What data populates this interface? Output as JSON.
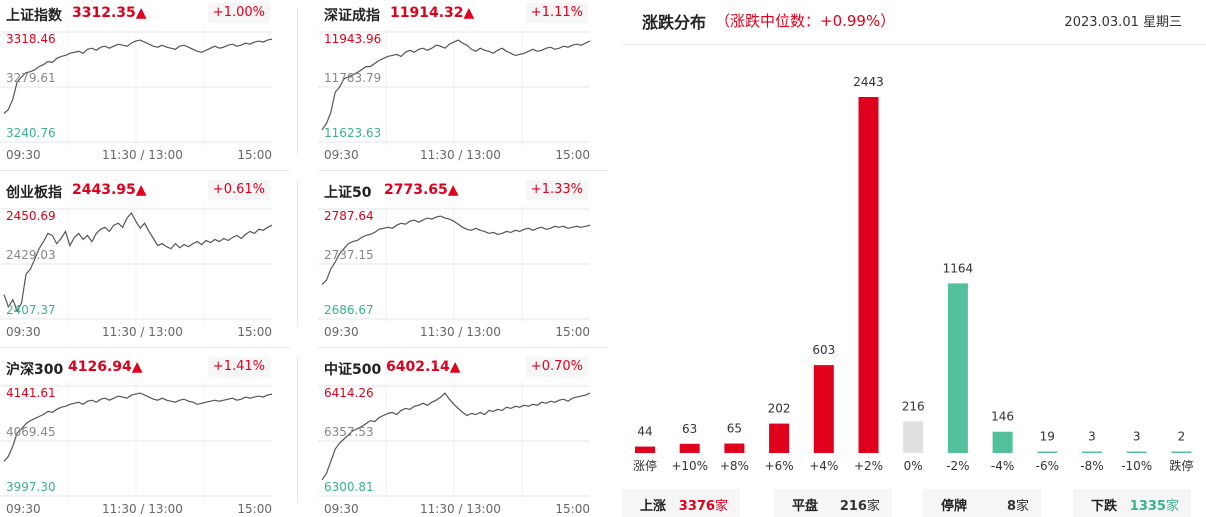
{
  "indices": [
    {
      "name": "上证指数",
      "value": "3312.35▲",
      "change": "+1.00%",
      "high": "3318.46",
      "mid": "3279.61",
      "low": "3240.76",
      "t_start": "09:30",
      "t_mid": "11:30 / 13:00",
      "t_end": "15:00",
      "series": [
        0.76,
        0.72,
        0.62,
        0.45,
        0.4,
        0.36,
        0.35,
        0.33,
        0.3,
        0.28,
        0.25,
        0.26,
        0.22,
        0.2,
        0.19,
        0.17,
        0.16,
        0.15,
        0.17,
        0.13,
        0.12,
        0.14,
        0.11,
        0.1,
        0.12,
        0.1,
        0.08,
        0.09,
        0.1,
        0.07,
        0.05,
        0.04,
        0.06,
        0.08,
        0.1,
        0.11,
        0.09,
        0.11,
        0.12,
        0.13,
        0.1,
        0.09,
        0.11,
        0.13,
        0.15,
        0.16,
        0.14,
        0.12,
        0.1,
        0.12,
        0.11,
        0.09,
        0.08,
        0.1,
        0.09,
        0.07,
        0.08,
        0.06,
        0.05,
        0.06,
        0.04,
        0.03
      ]
    },
    {
      "name": "深证成指",
      "value": "11914.32▲",
      "change": "+1.11%",
      "high": "11943.96",
      "mid": "11783.79",
      "low": "11623.63",
      "t_start": "09:30",
      "t_mid": "11:30 / 13:00",
      "t_end": "15:00",
      "series": [
        0.92,
        0.86,
        0.75,
        0.55,
        0.5,
        0.42,
        0.4,
        0.38,
        0.36,
        0.33,
        0.3,
        0.3,
        0.27,
        0.24,
        0.22,
        0.2,
        0.19,
        0.18,
        0.2,
        0.16,
        0.14,
        0.16,
        0.13,
        0.12,
        0.14,
        0.12,
        0.09,
        0.1,
        0.12,
        0.08,
        0.06,
        0.04,
        0.07,
        0.09,
        0.13,
        0.15,
        0.12,
        0.14,
        0.15,
        0.17,
        0.14,
        0.12,
        0.15,
        0.17,
        0.19,
        0.18,
        0.17,
        0.15,
        0.13,
        0.15,
        0.14,
        0.12,
        0.11,
        0.13,
        0.12,
        0.1,
        0.11,
        0.09,
        0.08,
        0.09,
        0.07,
        0.05
      ]
    },
    {
      "name": "创业板指",
      "value": "2443.95▲",
      "change": "+0.61%",
      "high": "2450.69",
      "mid": "2429.03",
      "low": "2407.37",
      "t_start": "09:30",
      "t_mid": "11:30 / 13:00",
      "t_end": "15:00",
      "series": [
        0.8,
        0.92,
        0.85,
        0.96,
        0.88,
        0.6,
        0.55,
        0.45,
        0.35,
        0.28,
        0.2,
        0.22,
        0.3,
        0.25,
        0.18,
        0.32,
        0.24,
        0.2,
        0.26,
        0.22,
        0.28,
        0.2,
        0.16,
        0.14,
        0.18,
        0.12,
        0.1,
        0.14,
        0.05,
        0.0,
        0.08,
        0.15,
        0.1,
        0.18,
        0.25,
        0.32,
        0.3,
        0.33,
        0.35,
        0.3,
        0.34,
        0.31,
        0.33,
        0.3,
        0.28,
        0.31,
        0.27,
        0.29,
        0.26,
        0.28,
        0.25,
        0.27,
        0.24,
        0.22,
        0.25,
        0.21,
        0.18,
        0.2,
        0.16,
        0.17,
        0.14,
        0.12
      ]
    },
    {
      "name": "上证50",
      "value": "2773.65▲",
      "change": "+1.33%",
      "high": "2787.64",
      "mid": "2737.15",
      "low": "2686.67",
      "t_start": "09:30",
      "t_mid": "11:30 / 13:00",
      "t_end": "15:00",
      "series": [
        0.7,
        0.66,
        0.55,
        0.48,
        0.4,
        0.35,
        0.3,
        0.28,
        0.27,
        0.24,
        0.22,
        0.21,
        0.19,
        0.16,
        0.15,
        0.14,
        0.15,
        0.12,
        0.1,
        0.11,
        0.08,
        0.07,
        0.09,
        0.07,
        0.05,
        0.06,
        0.04,
        0.03,
        0.05,
        0.06,
        0.08,
        0.11,
        0.14,
        0.16,
        0.17,
        0.15,
        0.17,
        0.18,
        0.2,
        0.19,
        0.21,
        0.2,
        0.18,
        0.19,
        0.17,
        0.18,
        0.16,
        0.15,
        0.17,
        0.15,
        0.14,
        0.16,
        0.15,
        0.13,
        0.14,
        0.13,
        0.15,
        0.14,
        0.13,
        0.14,
        0.13,
        0.12
      ]
    },
    {
      "name": "沪深300",
      "value": "4126.94▲",
      "change": "+1.41%",
      "high": "4141.61",
      "mid": "4069.45",
      "low": "3997.30",
      "t_start": "09:30",
      "t_mid": "11:30 / 13:00",
      "t_end": "15:00",
      "series": [
        0.7,
        0.65,
        0.55,
        0.42,
        0.38,
        0.33,
        0.3,
        0.28,
        0.26,
        0.24,
        0.21,
        0.22,
        0.19,
        0.17,
        0.16,
        0.14,
        0.13,
        0.12,
        0.14,
        0.11,
        0.1,
        0.12,
        0.09,
        0.08,
        0.1,
        0.08,
        0.06,
        0.07,
        0.08,
        0.05,
        0.04,
        0.03,
        0.05,
        0.07,
        0.09,
        0.1,
        0.08,
        0.1,
        0.11,
        0.12,
        0.1,
        0.09,
        0.11,
        0.12,
        0.14,
        0.13,
        0.12,
        0.11,
        0.1,
        0.11,
        0.1,
        0.09,
        0.08,
        0.1,
        0.09,
        0.07,
        0.08,
        0.07,
        0.06,
        0.07,
        0.05,
        0.04
      ]
    },
    {
      "name": "中证500",
      "value": "6402.14▲",
      "change": "+0.70%",
      "high": "6414.26",
      "mid": "6357.53",
      "low": "6300.81",
      "t_start": "09:30",
      "t_mid": "11:30 / 13:00",
      "t_end": "15:00",
      "series": [
        0.88,
        0.82,
        0.7,
        0.58,
        0.52,
        0.48,
        0.44,
        0.4,
        0.38,
        0.36,
        0.33,
        0.3,
        0.31,
        0.27,
        0.25,
        0.23,
        0.22,
        0.24,
        0.2,
        0.18,
        0.19,
        0.16,
        0.15,
        0.13,
        0.15,
        0.12,
        0.1,
        0.07,
        0.03,
        0.09,
        0.14,
        0.18,
        0.22,
        0.25,
        0.23,
        0.24,
        0.22,
        0.24,
        0.2,
        0.21,
        0.19,
        0.2,
        0.17,
        0.18,
        0.16,
        0.17,
        0.15,
        0.16,
        0.14,
        0.15,
        0.12,
        0.13,
        0.11,
        0.12,
        0.1,
        0.09,
        0.11,
        0.08,
        0.07,
        0.06,
        0.05,
        0.03
      ]
    }
  ],
  "distribution": {
    "title": "涨跌分布",
    "median": "（涨跌中位数：+0.99%）",
    "date": "2023.03.01 星期三"
  },
  "chart_data": {
    "type": "bar",
    "categories": [
      "涨停",
      "+10%",
      "+8%",
      "+6%",
      "+4%",
      "+2%",
      "0%",
      "-2%",
      "-4%",
      "-6%",
      "-8%",
      "-10%",
      "跌停"
    ],
    "values": [
      44,
      63,
      65,
      202,
      603,
      2443,
      216,
      1164,
      146,
      19,
      3,
      3,
      2
    ],
    "colors": [
      "#e0001b",
      "#e0001b",
      "#e0001b",
      "#e0001b",
      "#e0001b",
      "#e0001b",
      "#e0e0e0",
      "#52c09c",
      "#52c09c",
      "#52c09c",
      "#52c09c",
      "#52c09c",
      "#52c09c"
    ]
  },
  "stats": [
    {
      "label": "上涨",
      "num": "3376",
      "unit": "家",
      "color": "#e0001b"
    },
    {
      "label": "平盘",
      "num": "216",
      "unit": "家",
      "color": "#333333"
    },
    {
      "label": "停牌",
      "num": "8",
      "unit": "家",
      "color": "#333333"
    },
    {
      "label": "下跌",
      "num": "1335",
      "unit": "家",
      "color": "#3bb28f"
    }
  ]
}
